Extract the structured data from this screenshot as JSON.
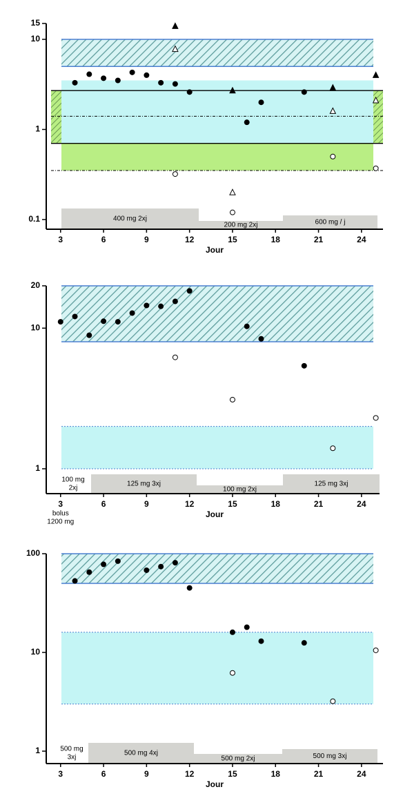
{
  "chart_data": [
    {
      "type": "scatter",
      "xlabel": "Jour",
      "log_y": true,
      "xlim": [
        2,
        25.5
      ],
      "xticks": [
        3,
        6,
        9,
        12,
        15,
        18,
        21,
        24
      ],
      "ylim": [
        0.1,
        15
      ],
      "yticks": [
        0.1,
        1,
        10,
        15
      ],
      "bands": [
        {
          "lower": 5,
          "upper": 10,
          "fill": "hatch"
        },
        {
          "lower": 0.7,
          "upper": 3.5,
          "fill": "#c4f5f5"
        },
        {
          "lower": 0.35,
          "upper": 0.7,
          "fill": "#b9ee84"
        },
        {
          "lower": 0.7,
          "upper": 2.7,
          "fill": "green-hatch-edges"
        }
      ],
      "lines": [
        {
          "value": 2.7,
          "style": "solid"
        },
        {
          "value": 0.7,
          "style": "solid"
        },
        {
          "value": 1.4,
          "style": "dotted"
        },
        {
          "value": 0.35,
          "style": "dotted"
        }
      ],
      "dosing": [
        [
          "400 mg 2xj"
        ],
        [
          "200 mg 2xj"
        ],
        [
          "600 mg / j"
        ]
      ],
      "series": [
        {
          "marker": "circle",
          "filled": true,
          "x": [
            4,
            5,
            6,
            7,
            8,
            9,
            10,
            11,
            12,
            16,
            17,
            20
          ],
          "values": [
            3.3,
            4.1,
            3.7,
            3.5,
            4.3,
            4.0,
            3.3,
            3.2,
            2.6,
            1.2,
            2.0,
            2.6
          ]
        },
        {
          "marker": "triangle",
          "filled": true,
          "x": [
            11,
            15,
            22,
            25
          ],
          "values": [
            14,
            2.7,
            2.9,
            4.0
          ]
        },
        {
          "marker": "triangle",
          "filled": false,
          "x": [
            11,
            15,
            22,
            25
          ],
          "values": [
            7.8,
            0.2,
            1.6,
            2.1
          ]
        },
        {
          "marker": "circle",
          "filled": false,
          "x": [
            11,
            15,
            22,
            25
          ],
          "values": [
            0.32,
            0.12,
            0.5,
            0.37
          ]
        }
      ]
    },
    {
      "type": "scatter",
      "xlabel": "Jour",
      "log_y": true,
      "xlim": [
        2,
        25.5
      ],
      "xticks": [
        3,
        6,
        9,
        12,
        15,
        18,
        21,
        24
      ],
      "ylim": [
        1,
        20
      ],
      "yticks": [
        1,
        10,
        20
      ],
      "bands": [
        {
          "lower": 8,
          "upper": 20,
          "fill": "hatch"
        },
        {
          "lower": 1,
          "upper": 2,
          "fill": "#c4f5f5"
        }
      ],
      "lines": [],
      "annotation": [
        "bolus",
        "1200 mg"
      ],
      "dosing": [
        [
          "100 mg",
          "2xj"
        ],
        [
          "125 mg 3xj"
        ],
        [
          "100 mg 2xj"
        ],
        [
          "125 mg 3xj"
        ]
      ],
      "series": [
        {
          "marker": "circle",
          "filled": true,
          "x": [
            3,
            4,
            5,
            6,
            7,
            8,
            9,
            10,
            11,
            12,
            16,
            17,
            20
          ],
          "values": [
            11.1,
            12.1,
            8.9,
            11.2,
            11.1,
            12.8,
            14.5,
            14.3,
            15.5,
            18.4,
            10.3,
            8.4,
            5.4
          ]
        },
        {
          "marker": "circle",
          "filled": false,
          "x": [
            11,
            15,
            22,
            25
          ],
          "values": [
            6.2,
            3.1,
            1.4,
            2.3
          ]
        }
      ]
    },
    {
      "type": "scatter",
      "xlabel": "Jour",
      "log_y": true,
      "xlim": [
        2,
        25.5
      ],
      "xticks": [
        3,
        6,
        9,
        12,
        15,
        18,
        21,
        24
      ],
      "ylim": [
        1,
        100
      ],
      "yticks": [
        1,
        10,
        100
      ],
      "bands": [
        {
          "lower": 50,
          "upper": 100,
          "fill": "hatch"
        },
        {
          "lower": 3,
          "upper": 16,
          "fill": "#c4f5f5"
        }
      ],
      "lines": [],
      "dosing": [
        [
          "500 mg",
          "3xj"
        ],
        [
          "500 mg 4xj"
        ],
        [
          "500 mg 2xj"
        ],
        [
          "500 mg 3xj"
        ]
      ],
      "series": [
        {
          "marker": "circle",
          "filled": true,
          "x": [
            4,
            5,
            6,
            7,
            9,
            10,
            11,
            12,
            15,
            16,
            17,
            20
          ],
          "values": [
            53,
            65,
            78,
            84,
            68,
            74,
            81,
            45,
            16,
            18,
            13,
            12.5
          ]
        },
        {
          "marker": "circle",
          "filled": false,
          "x": [
            15,
            22,
            25
          ],
          "values": [
            6.2,
            3.2,
            10.5
          ]
        }
      ]
    }
  ]
}
